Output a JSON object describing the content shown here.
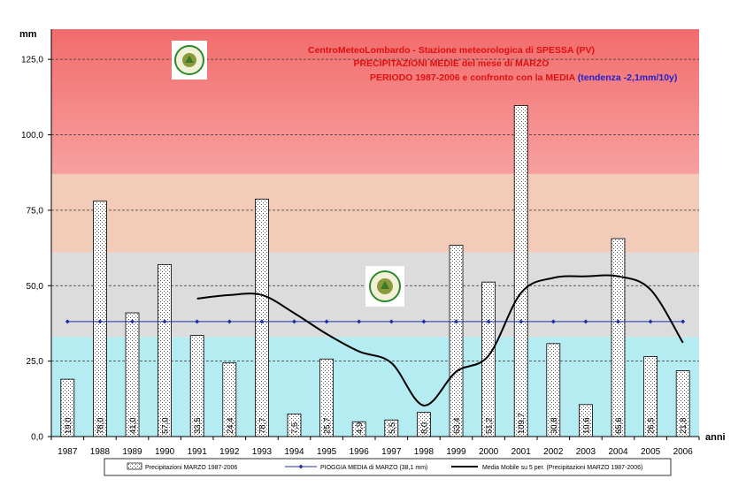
{
  "chart_data": {
    "type": "bar",
    "title_lines": [
      "CentroMeteoLombardo - Stazione meteorologica di SPESSA (PV)",
      "PRECIPITAZIONI MEDIE del mese di MARZO",
      "PERIODO 1987-2006 e confronto con la MEDIA"
    ],
    "trend_text": "(tendenza -2,1mm/10y)",
    "ylabel": "mm",
    "xlabel": "anni",
    "ylim": [
      0,
      135
    ],
    "yticks": [
      0,
      25,
      50,
      75,
      100,
      125
    ],
    "ytick_labels": [
      "0,0",
      "25,0",
      "50,0",
      "75,0",
      "100,0",
      "125,0"
    ],
    "categories": [
      "1987",
      "1988",
      "1989",
      "1990",
      "1991",
      "1992",
      "1993",
      "1994",
      "1995",
      "1996",
      "1997",
      "1998",
      "1999",
      "2000",
      "2001",
      "2002",
      "2003",
      "2004",
      "2005",
      "2006"
    ],
    "series": [
      {
        "name": "Precipitazioni MARZO 1987-2006",
        "kind": "bar",
        "values": [
          19.0,
          78.0,
          41.0,
          57.0,
          33.5,
          24.4,
          78.7,
          7.5,
          25.7,
          4.9,
          5.5,
          8.0,
          63.4,
          51.2,
          109.7,
          30.8,
          10.6,
          65.6,
          26.5,
          21.8
        ],
        "labels": [
          "19,0",
          "78,0",
          "41,0",
          "57,0",
          "33,5",
          "24,4",
          "78,7",
          "7,5",
          "25,7",
          "4,9",
          "5,5",
          "8,0",
          "63,4",
          "51,2",
          "109,7",
          "30,8",
          "10,6",
          "65,6",
          "26,5",
          "21,8"
        ]
      },
      {
        "name": "PIOGGIA MEDIA di MARZO (38,1 mm)",
        "kind": "line-marker",
        "color": "#1f2fa8",
        "values": [
          38.1,
          38.1,
          38.1,
          38.1,
          38.1,
          38.1,
          38.1,
          38.1,
          38.1,
          38.1,
          38.1,
          38.1,
          38.1,
          38.1,
          38.1,
          38.1,
          38.1,
          38.1,
          38.1,
          38.1
        ]
      },
      {
        "name": "Media Mobile su 5 per. (Precipitazioni MARZO 1987-2006)",
        "kind": "line",
        "color": "#000000",
        "values": [
          null,
          null,
          null,
          null,
          45.7,
          46.9,
          46.9,
          40.9,
          34.0,
          28.2,
          24.4,
          10.3,
          21.5,
          26.8,
          47.6,
          52.6,
          53.1,
          53.1,
          48.7,
          31.1
        ]
      }
    ],
    "background_bands": [
      {
        "from": 0,
        "to": 33,
        "color": "#b5ecf2"
      },
      {
        "from": 33,
        "to": 61,
        "color": "#dcdcdc"
      },
      {
        "from": 61,
        "to": 87,
        "color": "#f2cbb9"
      },
      {
        "from": 87,
        "to": 135,
        "color": "#f48b8b"
      }
    ],
    "title_color": "#e01010",
    "trend_color": "#2020d0",
    "grid": true,
    "legend_position": "bottom",
    "logo_text": "CENTRO METEO LOMBARDO"
  }
}
